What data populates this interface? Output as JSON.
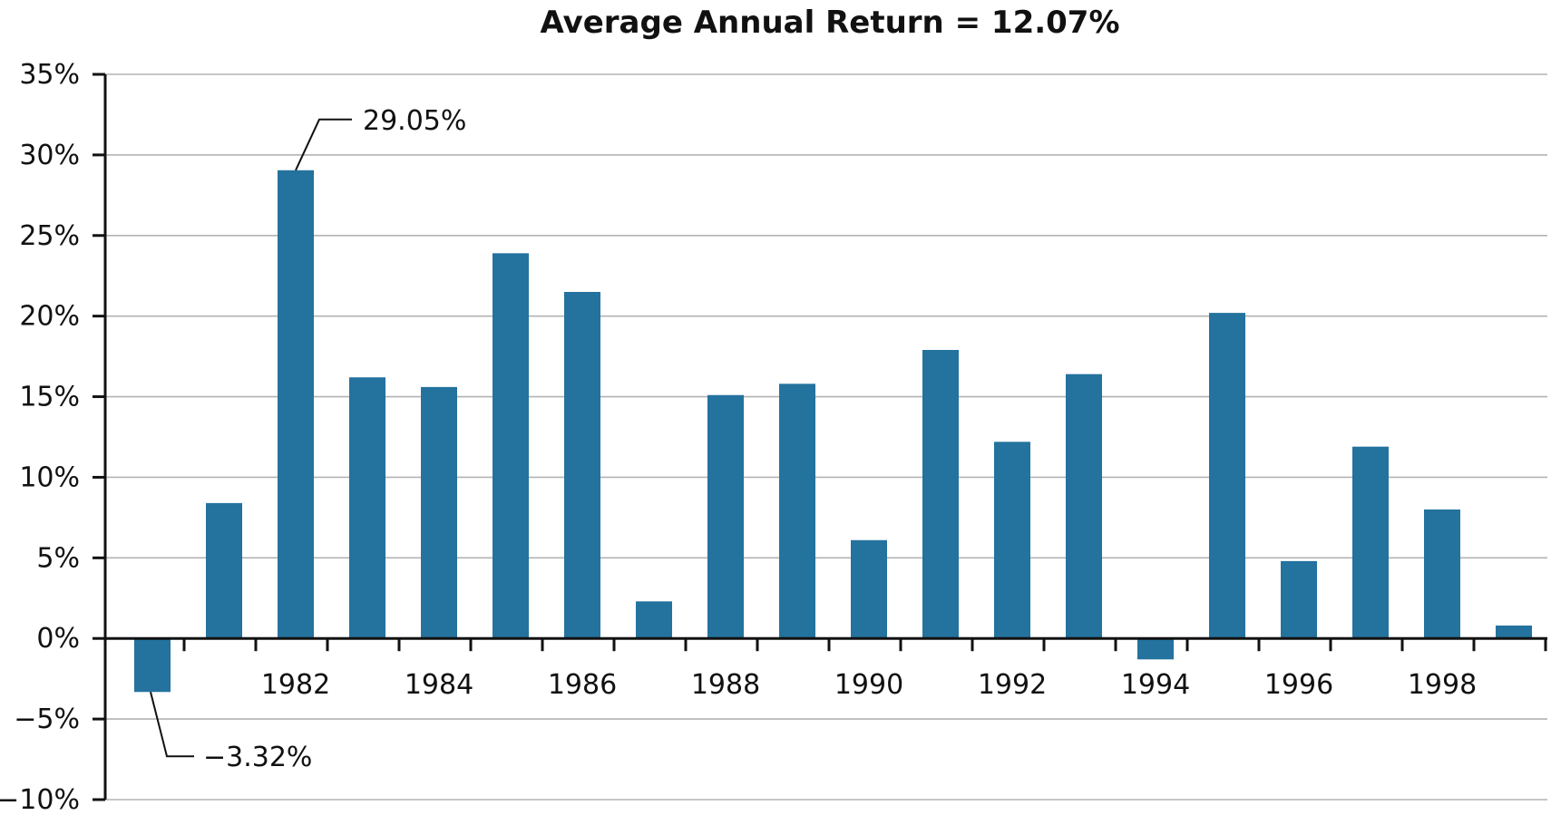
{
  "chart_data": {
    "type": "bar",
    "title": "Average Annual Return = 12.07%",
    "xlabel": "",
    "ylabel": "",
    "x": [
      1980,
      1981,
      1982,
      1983,
      1984,
      1985,
      1986,
      1987,
      1988,
      1989,
      1990,
      1991,
      1992,
      1993,
      1994,
      1995,
      1996,
      1997,
      1998,
      1999
    ],
    "values": [
      -3.32,
      8.4,
      29.05,
      16.2,
      15.6,
      23.9,
      21.5,
      2.3,
      15.1,
      15.8,
      6.1,
      17.9,
      12.2,
      16.4,
      -1.3,
      20.2,
      4.8,
      11.9,
      8.0,
      0.8
    ],
    "units": "%",
    "ylim": [
      -10,
      35
    ],
    "yticks": [
      -10,
      -5,
      0,
      5,
      10,
      15,
      20,
      25,
      30,
      35
    ],
    "ytick_labels": [
      "−10%",
      "−5%",
      "0%",
      "5%",
      "10%",
      "15%",
      "20%",
      "25%",
      "30%",
      "35%"
    ],
    "xtick_labels": [
      "1982",
      "1984",
      "1986",
      "1988",
      "1990",
      "1992",
      "1994",
      "1996",
      "1998"
    ],
    "annotations": [
      {
        "year": 1982,
        "value": 29.05,
        "text": "29.05%"
      },
      {
        "year": 1980,
        "value": -3.32,
        "text": "−3.32%"
      }
    ],
    "grid": true,
    "bar_color": "#24729e",
    "grid_color": "#b3b3b3",
    "axis_color": "#111111"
  }
}
